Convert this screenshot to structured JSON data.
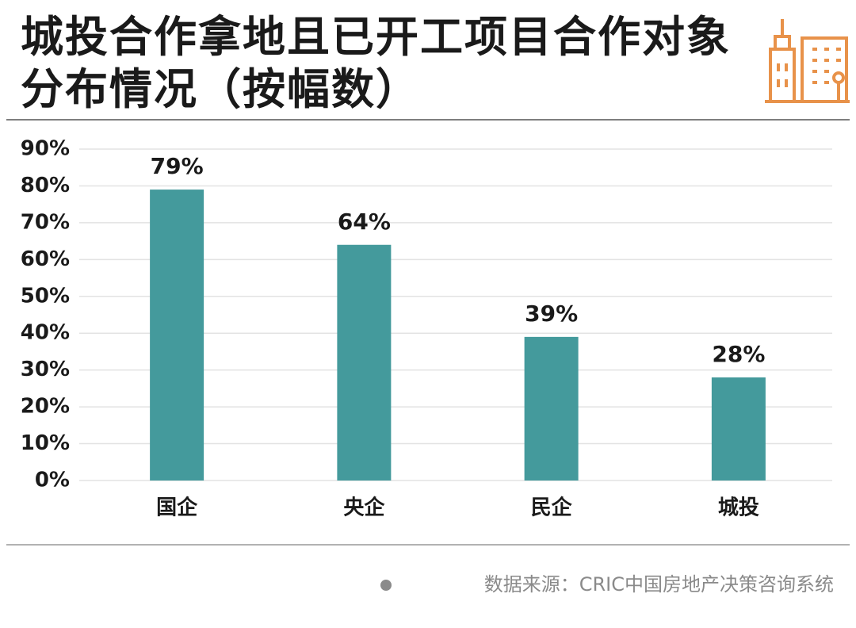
{
  "chart_data": {
    "type": "bar",
    "title": "城投合作拿地且已开工项目合作对象分布情况（按幅数）",
    "categories": [
      "国企",
      "央企",
      "民企",
      "城投"
    ],
    "values": [
      79,
      64,
      39,
      28
    ],
    "value_labels": [
      "79%",
      "64%",
      "39%",
      "28%"
    ],
    "color": "#449a9c",
    "ylim": [
      0,
      90
    ],
    "yticks": [
      {
        "value": 0,
        "label": "0%"
      },
      {
        "value": 10,
        "label": "10%"
      },
      {
        "value": 20,
        "label": "20%"
      },
      {
        "value": 30,
        "label": "30%"
      },
      {
        "value": 40,
        "label": "40%"
      },
      {
        "value": 50,
        "label": "50%"
      },
      {
        "value": 60,
        "label": "60%"
      },
      {
        "value": 70,
        "label": "70%"
      },
      {
        "value": 80,
        "label": "80%"
      },
      {
        "value": 90,
        "label": "90%"
      }
    ],
    "grid": true,
    "source": "数据来源：CRIC中国房地产决策咨询系统"
  }
}
